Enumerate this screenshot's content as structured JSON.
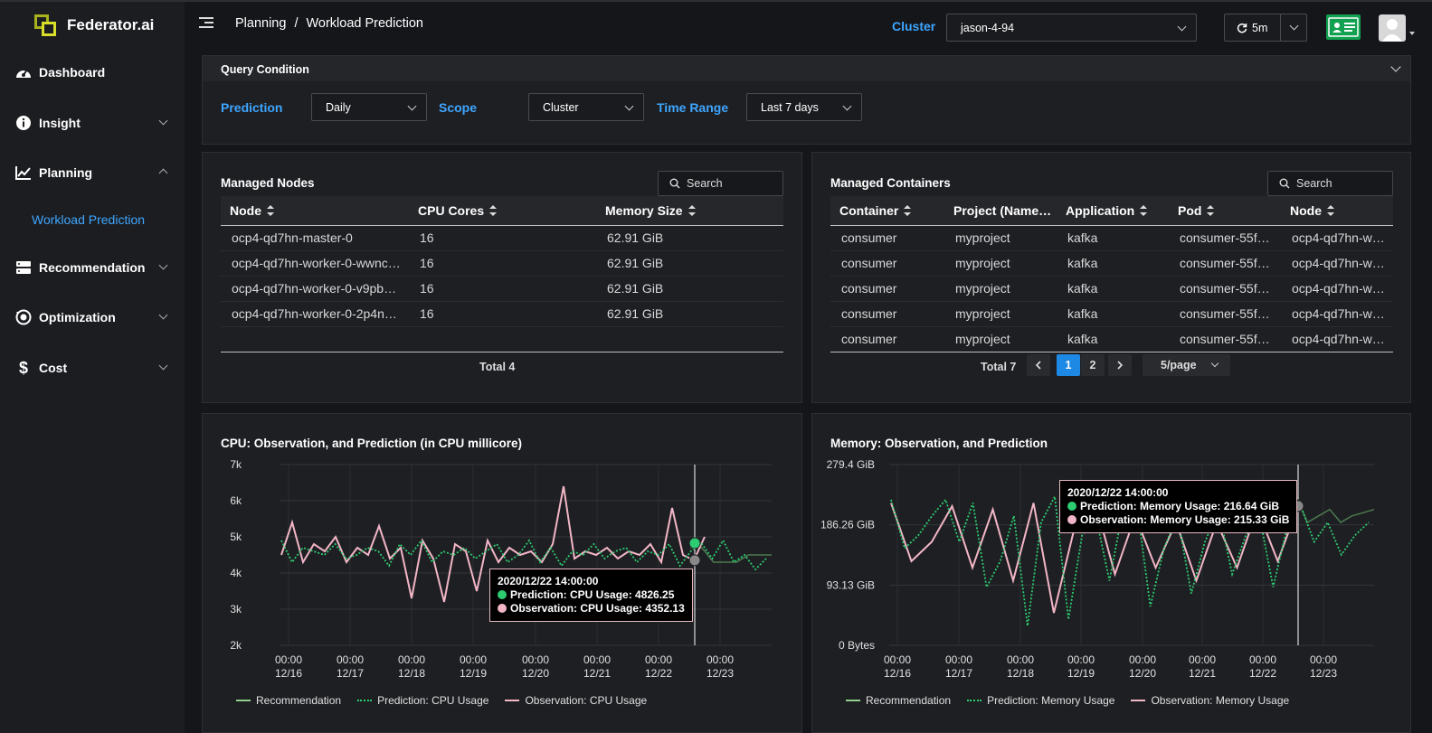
{
  "brand": {
    "name": "Federator.ai"
  },
  "sidebar": {
    "items": [
      {
        "label": "Dashboard"
      },
      {
        "label": "Insight"
      },
      {
        "label": "Planning"
      },
      {
        "label": "Recommendation"
      },
      {
        "label": "Optimization"
      },
      {
        "label": "Cost"
      }
    ],
    "active_sub": "Workload Prediction"
  },
  "header": {
    "breadcrumb": [
      "Planning",
      "Workload Prediction"
    ],
    "cluster_label": "Cluster",
    "cluster_value": "jason-4-94",
    "refresh_value": "5m"
  },
  "query": {
    "title": "Query Condition",
    "prediction_label": "Prediction",
    "prediction_value": "Daily",
    "scope_label": "Scope",
    "scope_value": "Cluster",
    "range_label": "Time Range",
    "range_value": "Last 7 days"
  },
  "nodes": {
    "title": "Managed Nodes",
    "search_placeholder": "Search",
    "columns": [
      "Node",
      "CPU Cores",
      "Memory Size"
    ],
    "rows": [
      [
        "ocp4-qd7hn-master-0",
        "16",
        "62.91 GiB"
      ],
      [
        "ocp4-qd7hn-worker-0-wwnc…",
        "16",
        "62.91 GiB"
      ],
      [
        "ocp4-qd7hn-worker-0-v9pb…",
        "16",
        "62.91 GiB"
      ],
      [
        "ocp4-qd7hn-worker-0-2p4n…",
        "16",
        "62.91 GiB"
      ]
    ],
    "total": "Total 4"
  },
  "containers": {
    "title": "Managed Containers",
    "search_placeholder": "Search",
    "columns": [
      "Container",
      "Project (Name…",
      "Application",
      "Pod",
      "Node"
    ],
    "rows": [
      [
        "consumer",
        "myproject",
        "kafka",
        "consumer-55f…",
        "ocp4-qd7hn-w…"
      ],
      [
        "consumer",
        "myproject",
        "kafka",
        "consumer-55f…",
        "ocp4-qd7hn-w…"
      ],
      [
        "consumer",
        "myproject",
        "kafka",
        "consumer-55f…",
        "ocp4-qd7hn-w…"
      ],
      [
        "consumer",
        "myproject",
        "kafka",
        "consumer-55f…",
        "ocp4-qd7hn-w…"
      ],
      [
        "consumer",
        "myproject",
        "kafka",
        "consumer-55f…",
        "ocp4-qd7hn-w…"
      ]
    ],
    "total": "Total 7",
    "pages": [
      "1",
      "2"
    ],
    "current_page": "1",
    "page_size": "5/page"
  },
  "colors": {
    "accent": "#3ea6ff",
    "recommendation": "#8fd18a",
    "prediction": "#2ecc71",
    "observation": "#f2b6c6"
  },
  "chart_data": [
    {
      "type": "line",
      "title": "CPU: Observation, and Prediction (in CPU millicore)",
      "y_ticks": [
        "7k",
        "6k",
        "5k",
        "4k",
        "3k",
        "2k"
      ],
      "ylim": [
        2000,
        7000
      ],
      "x_ticks": [
        [
          "00:00",
          "12/16"
        ],
        [
          "00:00",
          "12/17"
        ],
        [
          "00:00",
          "12/18"
        ],
        [
          "00:00",
          "12/19"
        ],
        [
          "00:00",
          "12/20"
        ],
        [
          "00:00",
          "12/21"
        ],
        [
          "00:00",
          "12/22"
        ],
        [
          "00:00",
          "12/23"
        ]
      ],
      "series": [
        {
          "name": "Recommendation",
          "values": [
            4700,
            4700,
            4300,
            4300,
            4300,
            4500,
            4500,
            4500
          ]
        },
        {
          "name": "Prediction: CPU Usage",
          "values": [
            4900,
            4300,
            4700,
            4600,
            4500,
            4800,
            4400,
            4500,
            4700,
            4600,
            4200,
            4800,
            4500,
            4900,
            4300,
            4600,
            4500,
            4700,
            4400,
            4600,
            4800,
            4300,
            4500,
            4900,
            4300,
            4700,
            4200,
            4600,
            4500,
            4800,
            4400,
            4600,
            4700,
            4300,
            4600,
            4500,
            4800,
            4200,
            4600,
            4826,
            4400,
            4900,
            4300,
            4500,
            4100,
            4400
          ]
        },
        {
          "name": "Observation: CPU Usage",
          "values": [
            4500,
            5400,
            4300,
            4800,
            4600,
            5000,
            4300,
            4700,
            4500,
            5300,
            4400,
            4700,
            3300,
            4900,
            4400,
            3200,
            4800,
            4600,
            3500,
            4900,
            4300,
            4700,
            4500,
            4600,
            4300,
            4800,
            6400,
            4400,
            4600,
            4500,
            4700,
            4400,
            4600,
            4500,
            4800,
            4300,
            5800,
            4500,
            4352,
            5000
          ]
        }
      ],
      "tooltip": {
        "time": "2020/12/22 14:00:00",
        "prediction": "Prediction: CPU Usage: 4826.25",
        "observation": "Observation: CPU Usage: 4352.13"
      }
    },
    {
      "type": "line",
      "title": "Memory: Observation, and Prediction",
      "y_ticks": [
        "279.4 GiB",
        "186.26 GiB",
        "93.13 GiB",
        "0 Bytes"
      ],
      "ylim": [
        0,
        279.4
      ],
      "x_ticks": [
        [
          "00:00",
          "12/16"
        ],
        [
          "00:00",
          "12/17"
        ],
        [
          "00:00",
          "12/18"
        ],
        [
          "00:00",
          "12/19"
        ],
        [
          "00:00",
          "12/20"
        ],
        [
          "00:00",
          "12/21"
        ],
        [
          "00:00",
          "12/22"
        ],
        [
          "00:00",
          "12/23"
        ]
      ],
      "series": [
        {
          "name": "Recommendation",
          "values": [
            230,
            190,
            200,
            210,
            190,
            200,
            205,
            210
          ]
        },
        {
          "name": "Prediction: Memory Usage",
          "values": [
            225,
            150,
            170,
            200,
            225,
            160,
            220,
            90,
            130,
            200,
            30,
            190,
            230,
            40,
            170,
            200,
            100,
            210,
            220,
            60,
            150,
            200,
            80,
            160,
            210,
            110,
            170,
            200,
            90,
            180,
            216.64,
            160,
            190,
            140,
            170,
            190
          ]
        },
        {
          "name": "Observation: Memory Usage",
          "values": [
            220,
            130,
            160,
            215,
            120,
            210,
            100,
            220,
            50,
            180,
            225,
            110,
            200,
            120,
            190,
            100,
            190,
            120,
            210,
            130,
            215.33
          ]
        }
      ],
      "tooltip": {
        "time": "2020/12/22 14:00:00",
        "prediction": "Prediction: Memory Usage: 216.64 GiB",
        "observation": "Observation: Memory Usage: 215.33 GiB"
      }
    }
  ]
}
